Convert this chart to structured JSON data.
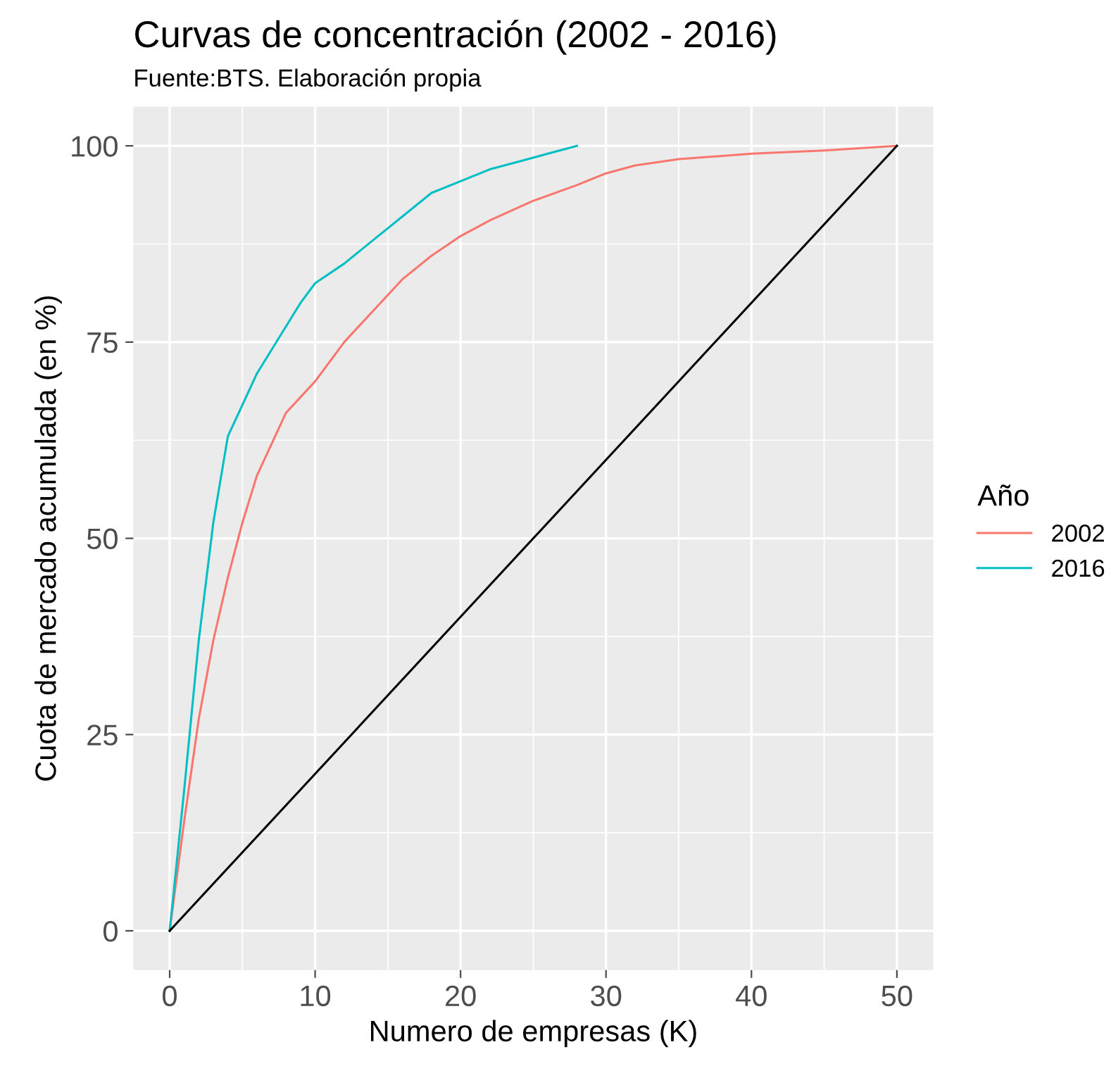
{
  "chart_data": {
    "type": "line",
    "title": "Curvas de concentración (2002 - 2016)",
    "subtitle": "Fuente:BTS. Elaboración propia",
    "xlabel": "Numero de empresas (K)",
    "ylabel": "Cuota de mercado acumulada (en %)",
    "legend_title": "Año",
    "xlim": [
      -2.5,
      52.5
    ],
    "ylim": [
      -5,
      105
    ],
    "xticks": [
      0,
      10,
      20,
      30,
      40,
      50
    ],
    "yticks": [
      0,
      25,
      50,
      75,
      100
    ],
    "grid": true,
    "legend": "right",
    "marker": "none",
    "line_style": "solid",
    "series": [
      {
        "name": "2002",
        "color": "#f8766d",
        "x": [
          0,
          1,
          2,
          3,
          4,
          5,
          6,
          7,
          8,
          10,
          12,
          14,
          16,
          18,
          20,
          22,
          25,
          28,
          30,
          32,
          35,
          40,
          45,
          50
        ],
        "values": [
          0,
          14,
          27,
          37,
          45,
          52,
          58,
          62,
          66,
          70,
          75,
          79,
          83,
          86,
          88.5,
          90.5,
          93,
          95,
          96.5,
          97.5,
          98.3,
          99,
          99.4,
          100
        ]
      },
      {
        "name": "2016",
        "color": "#00bfc4",
        "x": [
          0,
          1,
          2,
          3,
          4,
          5,
          6,
          7,
          8,
          9,
          10,
          12,
          14,
          16,
          18,
          20,
          22,
          24,
          26,
          28
        ],
        "values": [
          0,
          18,
          37,
          52,
          63,
          67,
          71,
          74,
          77,
          80,
          82.5,
          85,
          88,
          91,
          94,
          95.5,
          97,
          98,
          99,
          100
        ]
      },
      {
        "color": "#000000",
        "x": [
          0,
          50
        ],
        "values": [
          0,
          100
        ]
      }
    ]
  }
}
